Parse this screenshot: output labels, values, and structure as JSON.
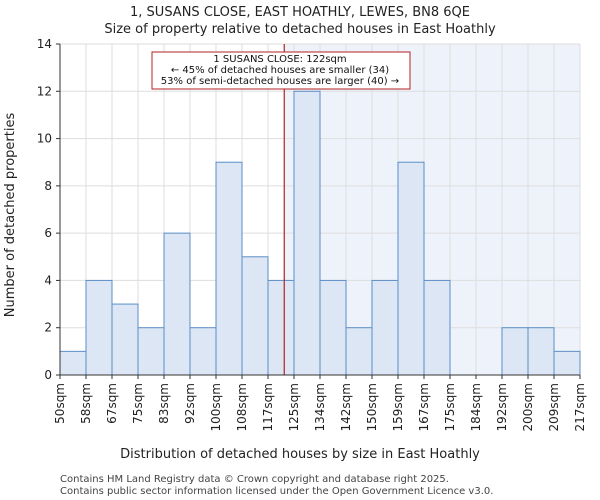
{
  "chart_data": {
    "type": "bar",
    "title_line1": "1, SUSANS CLOSE, EAST HOATHLY, LEWES, BN8 6QE",
    "title_line2": "Size of property relative to detached houses in East Hoathly",
    "xlabel": "Distribution of detached houses by size in East Hoathly",
    "ylabel": "Number of detached properties",
    "ylim": [
      0,
      14
    ],
    "yticks": [
      0,
      2,
      4,
      6,
      8,
      10,
      12,
      14
    ],
    "bin_edges": [
      "50sqm",
      "58sqm",
      "67sqm",
      "75sqm",
      "83sqm",
      "92sqm",
      "100sqm",
      "108sqm",
      "117sqm",
      "125sqm",
      "134sqm",
      "142sqm",
      "150sqm",
      "159sqm",
      "167sqm",
      "175sqm",
      "184sqm",
      "192sqm",
      "200sqm",
      "209sqm",
      "217sqm"
    ],
    "values": [
      1,
      4,
      3,
      2,
      6,
      2,
      9,
      5,
      4,
      12,
      4,
      2,
      4,
      9,
      4,
      0,
      0,
      2,
      2,
      1
    ],
    "marker": {
      "value_sqm": 122,
      "line1": "1 SUSANS CLOSE: 122sqm",
      "line2": "← 45% of detached houses are smaller (34)",
      "line3": "53% of semi-detached houses are larger (40) →"
    },
    "colors": {
      "bar_fill": "#dce6f4",
      "bar_edge": "#5b8ec6",
      "highlight_bg": "#eef3fb",
      "marker_line": "#b22222",
      "grid": "#dddddd"
    }
  },
  "footer": {
    "line1": "Contains HM Land Registry data © Crown copyright and database right 2025.",
    "line2": "Contains public sector information licensed under the Open Government Licence v3.0."
  }
}
